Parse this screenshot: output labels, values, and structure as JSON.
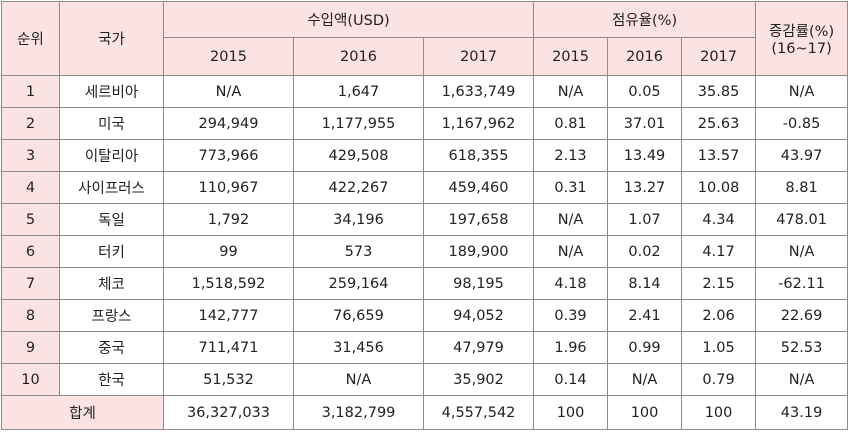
{
  "headers": {
    "rank": "순위",
    "country": "국가",
    "import_value": "수입액(USD)",
    "share": "점유율(%)",
    "growth_line1": "증감률(%)",
    "growth_line2": "(16~17)",
    "years": [
      "2015",
      "2016",
      "2017"
    ]
  },
  "rows": [
    {
      "rank": "1",
      "country": "세르비아",
      "v2015": "N/A",
      "v2016": "1,647",
      "v2017": "1,633,749",
      "s2015": "N/A",
      "s2016": "0.05",
      "s2017": "35.85",
      "growth": "N/A"
    },
    {
      "rank": "2",
      "country": "미국",
      "v2015": "294,949",
      "v2016": "1,177,955",
      "v2017": "1,167,962",
      "s2015": "0.81",
      "s2016": "37.01",
      "s2017": "25.63",
      "growth": "-0.85"
    },
    {
      "rank": "3",
      "country": "이탈리아",
      "v2015": "773,966",
      "v2016": "429,508",
      "v2017": "618,355",
      "s2015": "2.13",
      "s2016": "13.49",
      "s2017": "13.57",
      "growth": "43.97"
    },
    {
      "rank": "4",
      "country": "사이프러스",
      "v2015": "110,967",
      "v2016": "422,267",
      "v2017": "459,460",
      "s2015": "0.31",
      "s2016": "13.27",
      "s2017": "10.08",
      "growth": "8.81"
    },
    {
      "rank": "5",
      "country": "독일",
      "v2015": "1,792",
      "v2016": "34,196",
      "v2017": "197,658",
      "s2015": "N/A",
      "s2016": "1.07",
      "s2017": "4.34",
      "growth": "478.01"
    },
    {
      "rank": "6",
      "country": "터키",
      "v2015": "99",
      "v2016": "573",
      "v2017": "189,900",
      "s2015": "N/A",
      "s2016": "0.02",
      "s2017": "4.17",
      "growth": "N/A"
    },
    {
      "rank": "7",
      "country": "체코",
      "v2015": "1,518,592",
      "v2016": "259,164",
      "v2017": "98,195",
      "s2015": "4.18",
      "s2016": "8.14",
      "s2017": "2.15",
      "growth": "-62.11"
    },
    {
      "rank": "8",
      "country": "프랑스",
      "v2015": "142,777",
      "v2016": "76,659",
      "v2017": "94,052",
      "s2015": "0.39",
      "s2016": "2.41",
      "s2017": "2.06",
      "growth": "22.69"
    },
    {
      "rank": "9",
      "country": "중국",
      "v2015": "711,471",
      "v2016": "31,456",
      "v2017": "47,979",
      "s2015": "1.96",
      "s2016": "0.99",
      "s2017": "1.05",
      "growth": "52.53"
    },
    {
      "rank": "10",
      "country": "한국",
      "v2015": "51,532",
      "v2016": "N/A",
      "v2017": "35,902",
      "s2015": "0.14",
      "s2016": "N/A",
      "s2017": "0.79",
      "growth": "N/A"
    }
  ],
  "total": {
    "label": "합계",
    "v2015": "36,327,033",
    "v2016": "3,182,799",
    "v2017": "4,557,542",
    "s2015": "100",
    "s2016": "100",
    "s2017": "100",
    "growth": "43.19"
  },
  "colors": {
    "header_bg": "#fbe3e3",
    "border": "#8c8c8c"
  }
}
